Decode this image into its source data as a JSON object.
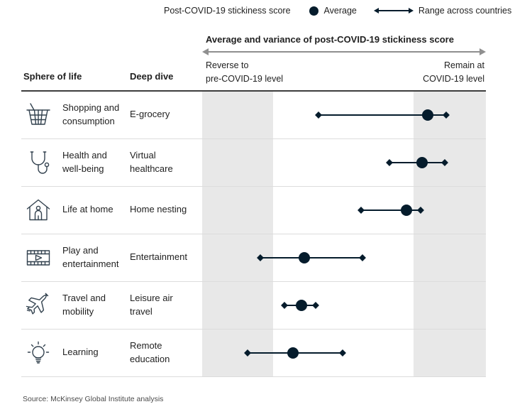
{
  "colors": {
    "navy": "#051C2C",
    "band_gray": "#E8E8E8",
    "axis_arrow_gray": "#8F8F8F",
    "separator": "#DCDCDC",
    "header_rule": "#3D3D3D"
  },
  "legend": {
    "title": "Post-COVID-19 stickiness score",
    "average_label": "Average",
    "range_label": "Range across countries"
  },
  "columns": {
    "sphere": "Sphere of life",
    "deep_dive": "Deep dive"
  },
  "chart_header": {
    "title": "Average and variance of post-COVID-19 stickiness score",
    "left_axis_label": "Reverse to\npre-COVID-19 level",
    "right_axis_label": "Remain at\nCOVID-19 level"
  },
  "rows": [
    {
      "icon": "shopping-basket-icon",
      "sphere": "Shopping and consumption",
      "deep_dive": "E-grocery",
      "min": 41,
      "avg": 79.5,
      "max": 86
    },
    {
      "icon": "stethoscope-icon",
      "sphere": "Health and well-being",
      "deep_dive": "Virtual healthcare",
      "min": 66,
      "avg": 77.5,
      "max": 85.5
    },
    {
      "icon": "house-person-icon",
      "sphere": "Life at home",
      "deep_dive": "Home nesting",
      "min": 56,
      "avg": 72,
      "max": 77
    },
    {
      "icon": "film-play-icon",
      "sphere": "Play and entertainment",
      "deep_dive": "Entertainment",
      "min": 20.5,
      "avg": 36,
      "max": 56.5
    },
    {
      "icon": "airplane-icon",
      "sphere": "Travel and mobility",
      "deep_dive": "Leisure air travel",
      "min": 29,
      "avg": 35,
      "max": 40
    },
    {
      "icon": "lightbulb-icon",
      "sphere": "Learning",
      "deep_dive": "Remote education",
      "min": 16,
      "avg": 32,
      "max": 49.5
    }
  ],
  "source": "Source: McKinsey Global Institute analysis",
  "chart_data": {
    "type": "scatter",
    "subtype": "dot-range",
    "title": "Average and variance of post-COVID-19 stickiness score",
    "axis": {
      "left_label": "Reverse to pre-COVID-19 level",
      "right_label": "Remain at COVID-19 level",
      "range": [
        0,
        100
      ],
      "units": "relative share of axis width (%)",
      "grid": false
    },
    "legend_position": "top",
    "legend_entries": [
      "Average",
      "Range across countries"
    ],
    "categories": [
      "E-grocery",
      "Virtual healthcare",
      "Home nesting",
      "Entertainment",
      "Leisure air travel",
      "Remote education"
    ],
    "series": [
      {
        "name": "Range min",
        "values": [
          41,
          66,
          56,
          20.5,
          29,
          16
        ]
      },
      {
        "name": "Average",
        "values": [
          79.5,
          77.5,
          72,
          36,
          35,
          32
        ]
      },
      {
        "name": "Range max",
        "values": [
          86,
          85.5,
          77,
          56.5,
          40,
          49.5
        ]
      }
    ]
  }
}
